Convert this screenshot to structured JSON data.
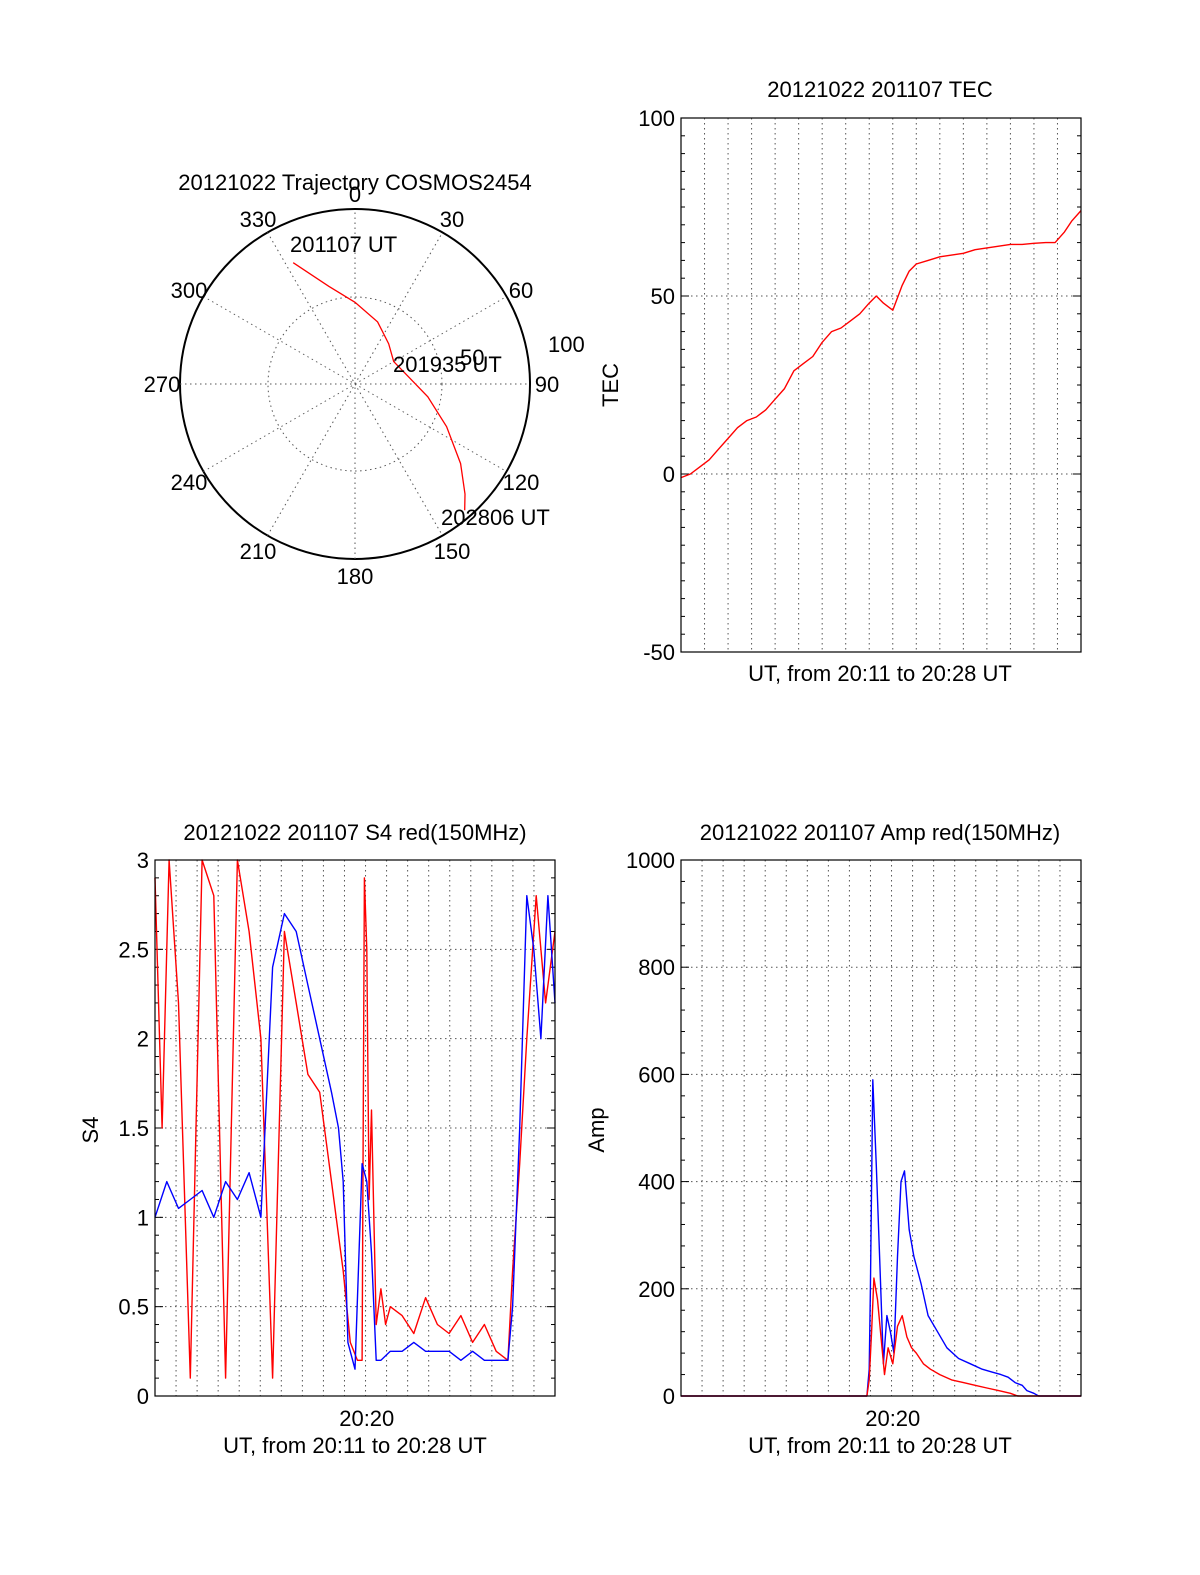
{
  "chart_data": [
    {
      "id": "trajectory",
      "type": "polar",
      "title": "20121022 Trajectory COSMOS2454",
      "azimuth_labels": [
        "0",
        "30",
        "60",
        "90",
        "120",
        "150",
        "180",
        "210",
        "240",
        "270",
        "300",
        "330"
      ],
      "radial_labels": [
        "50",
        "100"
      ],
      "grid": true,
      "series": [
        {
          "color": "#ff0000",
          "points": [
            {
              "az": 333,
              "el": 20
            },
            {
              "az": 345,
              "el": 38
            },
            {
              "az": 0,
              "el": 48
            },
            {
              "az": 20,
              "el": 56
            },
            {
              "az": 40,
              "el": 63
            },
            {
              "az": 60,
              "el": 67
            },
            {
              "az": 80,
              "el": 63
            },
            {
              "az": 100,
              "el": 52
            },
            {
              "az": 115,
              "el": 38
            },
            {
              "az": 127,
              "el": 22
            },
            {
              "az": 135,
              "el": 10
            },
            {
              "az": 139,
              "el": 4
            }
          ]
        }
      ],
      "annotations": [
        {
          "text": "201107 UT",
          "az": 337,
          "el": 19
        },
        {
          "text": "201935 UT",
          "az": 81,
          "el": 60
        },
        {
          "text": "202806 UT",
          "az": 135,
          "el": 6
        }
      ]
    },
    {
      "id": "tec",
      "type": "line",
      "title": "20121022 201107 TEC",
      "xlabel": "UT, from 20:11 to 20:28 UT",
      "ylabel": "TEC",
      "xlim": [
        0,
        17
      ],
      "ylim": [
        -50,
        100
      ],
      "yticks": [
        "100",
        "50",
        "0",
        "-50"
      ],
      "xticks": [],
      "grid": true,
      "series": [
        {
          "color": "#ff0000",
          "x": [
            0,
            0.4,
            0.8,
            1.2,
            1.6,
            2.0,
            2.4,
            2.8,
            3.2,
            3.6,
            4.0,
            4.4,
            4.8,
            5.2,
            5.6,
            6.0,
            6.4,
            6.8,
            7.2,
            7.6,
            8.0,
            8.3,
            8.6,
            9.0,
            9.4,
            9.7,
            10.0,
            10.5,
            11.0,
            11.5,
            12.0,
            12.5,
            13.0,
            13.5,
            14.0,
            14.5,
            15.0,
            15.5,
            15.9,
            16.3,
            16.6,
            17.0
          ],
          "y": [
            -1,
            0,
            2,
            4,
            7,
            10,
            13,
            15,
            16,
            18,
            21,
            24,
            29,
            31,
            33,
            37,
            40,
            41,
            43,
            45,
            48,
            50,
            48,
            46,
            53,
            57,
            59,
            60,
            61,
            61.5,
            62,
            63,
            63.5,
            64,
            64.5,
            64.5,
            64.8,
            65,
            65,
            68,
            71,
            74
          ]
        }
      ]
    },
    {
      "id": "s4",
      "type": "line",
      "title": "20121022 201107 S4 red(150MHz)",
      "xlabel": "UT, from 20:11 to 20:28 UT",
      "ylabel": "S4",
      "xlim": [
        0,
        17
      ],
      "ylim": [
        0,
        3
      ],
      "yticks": [
        "3",
        "2.5",
        "2",
        "1.5",
        "1",
        "0.5",
        "0"
      ],
      "xticks": [
        {
          "value": 9,
          "label": "20:20"
        }
      ],
      "grid": true,
      "series": [
        {
          "color": "#ff0000",
          "x": [
            0,
            0.3,
            0.6,
            1.0,
            1.5,
            2.0,
            2.5,
            3.0,
            3.5,
            4.0,
            4.5,
            5.0,
            5.5,
            6.0,
            6.5,
            7.0,
            7.5,
            7.8,
            8.0,
            8.3,
            8.6,
            8.8,
            8.9,
            9.0,
            9.1,
            9.2,
            9.4,
            9.6,
            9.8,
            10.0,
            10.5,
            11.0,
            11.5,
            12.0,
            12.5,
            13.0,
            13.5,
            14.0,
            14.5,
            15.0,
            15.2,
            15.5,
            15.8,
            16.2,
            16.6,
            17.0
          ],
          "y": [
            2.9,
            1.5,
            3.0,
            2.2,
            0.1,
            3.0,
            2.8,
            0.1,
            3.0,
            2.6,
            2.0,
            0.1,
            2.6,
            2.2,
            1.8,
            1.7,
            1.2,
            0.9,
            0.7,
            0.3,
            0.2,
            0.2,
            2.9,
            2.5,
            1.1,
            1.6,
            0.4,
            0.6,
            0.4,
            0.5,
            0.45,
            0.35,
            0.55,
            0.4,
            0.35,
            0.45,
            0.3,
            0.4,
            0.25,
            0.2,
            0.7,
            1.3,
            2.0,
            2.8,
            2.2,
            2.6
          ]
        },
        {
          "color": "#0000ff",
          "x": [
            0,
            0.5,
            1.0,
            1.5,
            2.0,
            2.5,
            3.0,
            3.5,
            4.0,
            4.5,
            5.0,
            5.5,
            6.0,
            6.5,
            7.0,
            7.5,
            7.8,
            8.0,
            8.2,
            8.5,
            8.8,
            9.0,
            9.2,
            9.4,
            9.6,
            10.0,
            10.5,
            11.0,
            11.5,
            12.0,
            12.5,
            13.0,
            13.5,
            14.0,
            14.5,
            15.0,
            15.2,
            15.5,
            15.8,
            16.1,
            16.4,
            16.7,
            17.0
          ],
          "y": [
            1.0,
            1.2,
            1.05,
            1.1,
            1.15,
            1.0,
            1.2,
            1.1,
            1.25,
            1.0,
            2.4,
            2.7,
            2.6,
            2.3,
            2.0,
            1.7,
            1.5,
            1.2,
            0.3,
            0.15,
            1.3,
            1.2,
            0.8,
            0.2,
            0.2,
            0.25,
            0.25,
            0.3,
            0.25,
            0.25,
            0.25,
            0.2,
            0.25,
            0.2,
            0.2,
            0.2,
            0.5,
            1.5,
            2.8,
            2.5,
            2.0,
            2.8,
            2.2
          ]
        }
      ]
    },
    {
      "id": "amp",
      "type": "line",
      "title": "20121022 201107 Amp red(150MHz)",
      "xlabel": "UT, from 20:11 to 20:28 UT",
      "ylabel": "Amp",
      "xlim": [
        0,
        17
      ],
      "ylim": [
        0,
        1000
      ],
      "yticks": [
        "1000",
        "800",
        "600",
        "400",
        "200",
        "0"
      ],
      "xticks": [
        {
          "value": 9,
          "label": "20:20"
        }
      ],
      "grid": true,
      "series": [
        {
          "color": "#0000ff",
          "x": [
            0,
            7.9,
            8.0,
            8.05,
            8.15,
            8.3,
            8.45,
            8.6,
            8.75,
            8.9,
            9.05,
            9.2,
            9.35,
            9.5,
            9.7,
            9.9,
            10.2,
            10.5,
            10.9,
            11.3,
            11.8,
            12.3,
            12.8,
            13.2,
            13.6,
            13.9,
            14.2,
            14.5,
            14.7,
            15.0,
            15.2,
            17.0
          ],
          "y": [
            0,
            0,
            50,
            200,
            590,
            430,
            250,
            60,
            150,
            120,
            80,
            260,
            400,
            420,
            310,
            260,
            210,
            150,
            120,
            90,
            70,
            60,
            50,
            45,
            40,
            35,
            25,
            20,
            10,
            5,
            0,
            0
          ]
        },
        {
          "color": "#ff0000",
          "x": [
            0,
            7.9,
            8.0,
            8.1,
            8.2,
            8.35,
            8.5,
            8.65,
            8.8,
            9.0,
            9.2,
            9.4,
            9.6,
            9.8,
            10.0,
            10.3,
            10.6,
            11.0,
            11.5,
            12.0,
            12.5,
            13.0,
            13.5,
            14.0,
            14.3,
            17.0
          ],
          "y": [
            0,
            0,
            30,
            120,
            220,
            180,
            110,
            40,
            90,
            60,
            130,
            150,
            110,
            90,
            80,
            60,
            50,
            40,
            30,
            25,
            20,
            15,
            10,
            5,
            0,
            0
          ]
        }
      ]
    }
  ]
}
